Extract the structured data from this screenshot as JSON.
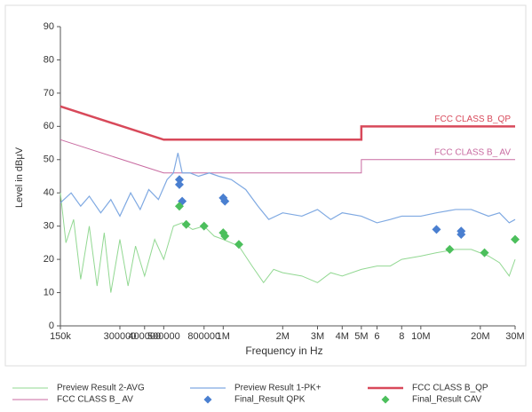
{
  "chart_data": {
    "type": "line",
    "x_label": "Frequency in Hz",
    "y_label": "Level in dBµV",
    "xscale": "log",
    "grid": false,
    "xlim": [
      150000,
      30000000
    ],
    "ylim": [
      0,
      90
    ],
    "yticks": [
      0,
      10,
      20,
      30,
      40,
      50,
      60,
      70,
      80,
      90
    ],
    "xticks": [
      {
        "value": 150000,
        "label": "150k"
      },
      300000,
      400000,
      500000,
      800000,
      {
        "value": 1000000,
        "label": "1M"
      },
      {
        "value": 2000000,
        "label": "2M"
      },
      {
        "value": 3000000,
        "label": "3M"
      },
      {
        "value": 4000000,
        "label": "4M"
      },
      {
        "value": 5000000,
        "label": "5M"
      },
      {
        "value": 6000000,
        "label": "6"
      },
      {
        "value": 8000000,
        "label": "8"
      },
      {
        "value": 10000000,
        "label": "10M"
      },
      {
        "value": 20000000,
        "label": "20M"
      },
      {
        "value": 30000000,
        "label": "30M"
      }
    ],
    "series": [
      {
        "name": "Preview Result 2-AVG",
        "type": "line",
        "color": "#92d892",
        "width": 1,
        "x": [
          150000,
          160000,
          175000,
          190000,
          210000,
          230000,
          250000,
          270000,
          300000,
          330000,
          360000,
          400000,
          450000,
          500000,
          560000,
          620000,
          700000,
          800000,
          900000,
          1000000,
          1200000,
          1400000,
          1600000,
          1800000,
          2000000,
          2500000,
          3000000,
          3500000,
          4000000,
          5000000,
          6000000,
          7000000,
          8000000,
          10000000,
          12000000,
          15000000,
          18000000,
          22000000,
          25000000,
          28000000,
          30000000
        ],
        "values": [
          40,
          25,
          32,
          14,
          30,
          12,
          28,
          10,
          26,
          12,
          24,
          15,
          26,
          20,
          30,
          31,
          29,
          30,
          27,
          26,
          24,
          18,
          13,
          17,
          16,
          15,
          13,
          16,
          15,
          17,
          18,
          18,
          20,
          21,
          22,
          23,
          23,
          21,
          19,
          15,
          20
        ]
      },
      {
        "name": "FCC CLASS B_ AV",
        "type": "line",
        "color": "#c86aa0",
        "width": 1,
        "x": [
          150000,
          500000,
          5000000,
          5000000,
          30000000
        ],
        "values": [
          56,
          46,
          46,
          50,
          50
        ]
      },
      {
        "name": "Preview Result 1-PK+",
        "type": "line",
        "color": "#7fa9e2",
        "width": 1.2,
        "x": [
          150000,
          170000,
          190000,
          210000,
          240000,
          270000,
          300000,
          340000,
          380000,
          420000,
          470000,
          520000,
          560000,
          590000,
          620000,
          680000,
          750000,
          850000,
          950000,
          1100000,
          1300000,
          1500000,
          1700000,
          2000000,
          2500000,
          3000000,
          3500000,
          4000000,
          5000000,
          6000000,
          7000000,
          8000000,
          10000000,
          12000000,
          15000000,
          18000000,
          22000000,
          25000000,
          28000000,
          30000000
        ],
        "values": [
          37,
          40,
          36,
          39,
          34,
          38,
          33,
          40,
          35,
          41,
          38,
          44,
          46,
          52,
          46,
          46,
          45,
          46,
          45,
          44,
          41,
          36,
          32,
          34,
          33,
          35,
          32,
          34,
          33,
          31,
          32,
          33,
          33,
          34,
          35,
          35,
          33,
          34,
          31,
          32
        ]
      },
      {
        "name": "Final_Result QPK",
        "type": "scatter",
        "marker": "diamond",
        "color": "#4a7fd0",
        "x": [
          600000,
          600000,
          620000,
          1000000,
          1020000,
          12000000,
          16000000,
          16000000
        ],
        "values": [
          44,
          42.5,
          37.5,
          38.5,
          37.5,
          29,
          28.5,
          27.5
        ]
      },
      {
        "name": "FCC CLASS B_QP",
        "type": "line",
        "color": "#d8495a",
        "width": 2.5,
        "x": [
          150000,
          500000,
          5000000,
          5000000,
          30000000
        ],
        "values": [
          66,
          56,
          56,
          60,
          60
        ]
      },
      {
        "name": "Final_Result CAV",
        "type": "scatter",
        "marker": "diamond",
        "color": "#4cbf5c",
        "x": [
          600000,
          650000,
          800000,
          1000000,
          1020000,
          1200000,
          14000000,
          21000000,
          30000000
        ],
        "values": [
          36,
          30.5,
          30,
          28,
          27,
          24.5,
          23,
          22,
          26
        ]
      }
    ]
  }
}
